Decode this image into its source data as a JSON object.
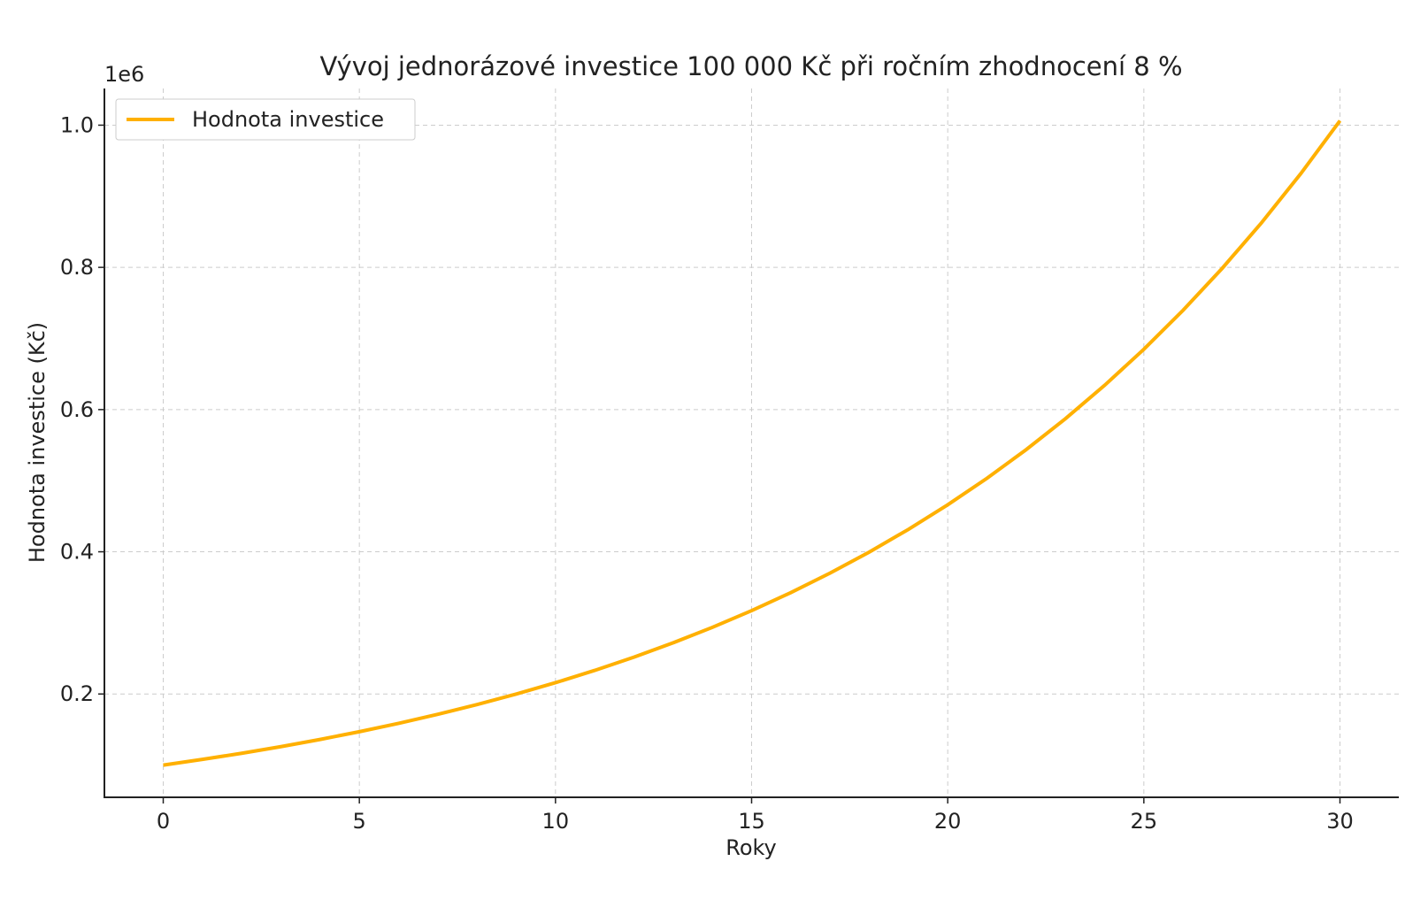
{
  "chart_data": {
    "type": "line",
    "title": "Vývoj jednorázové investice 100 000 Kč při ročním zhodnocení 8 %",
    "xlabel": "Roky",
    "ylabel": "Hodnota investice (Kč)",
    "y_offset_label": "1e6",
    "x": [
      0,
      1,
      2,
      3,
      4,
      5,
      6,
      7,
      8,
      9,
      10,
      11,
      12,
      13,
      14,
      15,
      16,
      17,
      18,
      19,
      20,
      21,
      22,
      23,
      24,
      25,
      26,
      27,
      28,
      29,
      30
    ],
    "series": [
      {
        "name": "Hodnota investice",
        "color": "#ffb000",
        "values": [
          100000,
          108000,
          116640,
          125971,
          136049,
          146933,
          158687,
          171382,
          185093,
          199900,
          215892,
          233164,
          251817,
          271962,
          293719,
          317217,
          342594,
          370002,
          399602,
          431570,
          466096,
          503383,
          543654,
          587146,
          634118,
          684848,
          739635,
          798806,
          862711,
          931727,
          1006266
        ]
      }
    ],
    "xlim": [
      -1.5,
      31.5
    ],
    "xticks": [
      0,
      5,
      10,
      15,
      20,
      25,
      30
    ],
    "ylim": [
      54687,
      1051578
    ],
    "yticks": [
      {
        "value": 200000,
        "label": "0.2"
      },
      {
        "value": 400000,
        "label": "0.4"
      },
      {
        "value": 600000,
        "label": "0.6"
      },
      {
        "value": 800000,
        "label": "0.8"
      },
      {
        "value": 1000000,
        "label": "1.0"
      }
    ],
    "grid": true,
    "legend": "upper left"
  }
}
